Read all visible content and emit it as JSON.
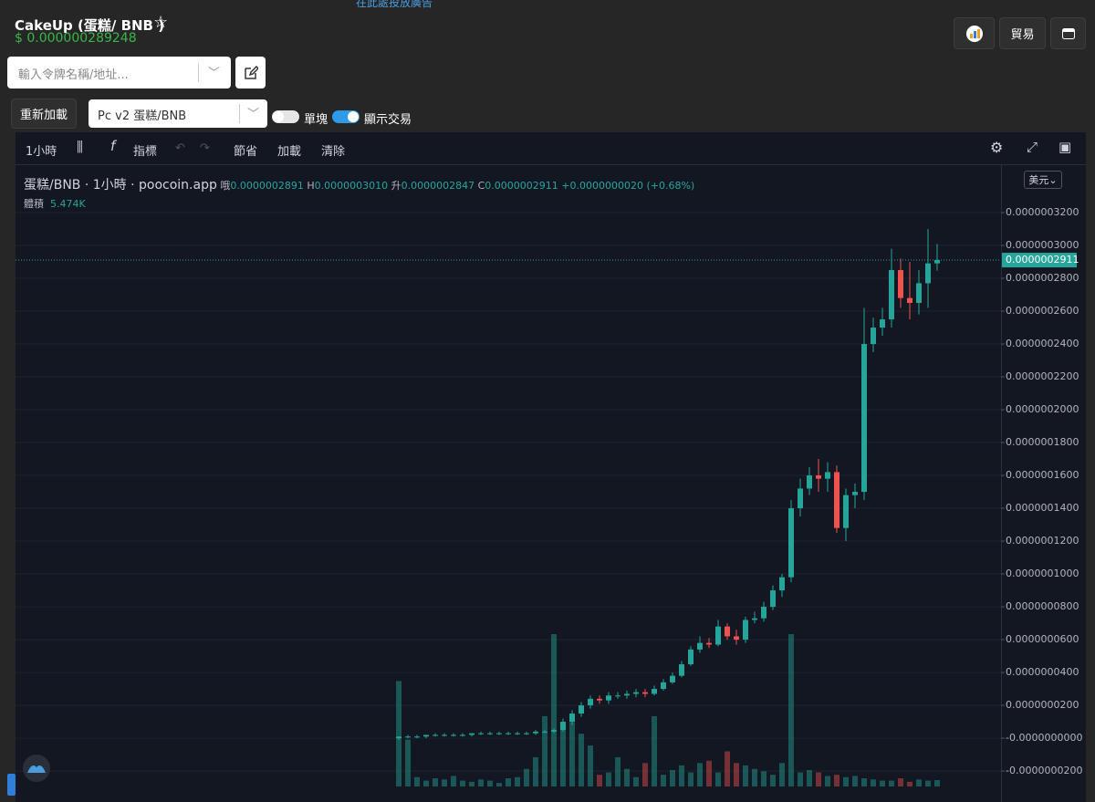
{
  "ad_link": "在此處投放廣告",
  "header": {
    "token": "CakeUp (蛋糕/ BNB )",
    "price": "$ 0.000000289248",
    "trade_button": "貿易"
  },
  "search": {
    "placeholder": "輸入令牌名稱/地址..."
  },
  "controls": {
    "reload": "重新加載",
    "pair_select": "Pc v2 蛋糕/BNB",
    "toggle_single": "單塊",
    "toggle_single_on": false,
    "toggle_trades": "顯示交易",
    "toggle_trades_on": true
  },
  "toolbar": {
    "interval": "1小時",
    "indicators": "指標",
    "save": "節省",
    "load": "加載",
    "clear": "清除"
  },
  "legend": {
    "title": "蛋糕/BNB · 1小時 · poocoin.app",
    "open_label": "哦",
    "open": "0.0000002891",
    "high_label": "H",
    "high": "0.0000003010",
    "low_label": "升",
    "low": "0.0000002847",
    "close_label": "C",
    "close": "0.0000002911",
    "change": "+0.0000000020 (+0.68%)",
    "volume_label": "體積",
    "volume": "5.474K"
  },
  "currency": "美元",
  "chart_data": {
    "type": "candlestick",
    "up_color": "#26a69a",
    "down_color": "#ef5350",
    "open": [
      0,
      1e-09,
      1e-09,
      1e-09,
      2e-09,
      2e-09,
      2e-09,
      2e-09,
      2e-09,
      3e-09,
      3e-09,
      3e-09,
      3e-09,
      3e-09,
      3e-09,
      3e-09,
      4e-09,
      4e-09,
      5e-09,
      1e-08,
      1.5e-08,
      2e-08,
      2.4e-08,
      2.3e-08,
      2.6e-08,
      2.6e-08,
      2.7e-08,
      2.8e-08,
      2.7e-08,
      3e-08,
      3.4e-08,
      3.8e-08,
      4.5e-08,
      5.4e-08,
      5.8e-08,
      5.7e-08,
      6.8e-08,
      6.2e-08,
      6e-08,
      7.2e-08,
      7.3e-08,
      8e-08,
      9e-08,
      9.8e-08,
      1.4e-07,
      1.52e-07,
      1.6e-07,
      1.58e-07,
      1.62e-07,
      1.28e-07,
      1.48e-07,
      1.5e-07,
      2.4e-07,
      2.5e-07,
      2.55e-07,
      2.85e-07,
      2.68e-07,
      2.65e-07,
      2.77e-07,
      2.891e-07
    ],
    "high": [
      1e-09,
      2e-09,
      2e-09,
      2e-09,
      3e-09,
      3e-09,
      3e-09,
      3e-09,
      3e-09,
      4e-09,
      4e-09,
      4e-09,
      4e-09,
      4e-09,
      4e-09,
      5e-09,
      5e-09,
      6e-09,
      1.2e-08,
      1.7e-08,
      2.2e-08,
      2.6e-08,
      2.6e-08,
      2.8e-08,
      2.8e-08,
      2.9e-08,
      3e-08,
      3e-08,
      3.2e-08,
      3.6e-08,
      4e-08,
      4.7e-08,
      5.6e-08,
      6.2e-08,
      6.1e-08,
      7.2e-08,
      7e-08,
      6.6e-08,
      7.4e-08,
      7.7e-08,
      8.3e-08,
      9.3e-08,
      1e-07,
      1.45e-07,
      1.58e-07,
      1.65e-07,
      1.7e-07,
      1.68e-07,
      1.66e-07,
      1.52e-07,
      1.55e-07,
      2.62e-07,
      2.56e-07,
      2.62e-07,
      2.98e-07,
      2.92e-07,
      2.9e-07,
      2.85e-07,
      3.1e-07,
      3.01e-07
    ],
    "low": [
      -1e-09,
      0,
      0,
      0,
      1e-09,
      1e-09,
      1e-09,
      1e-09,
      1e-09,
      2e-09,
      2e-09,
      2e-09,
      2e-09,
      2e-09,
      2e-09,
      2e-09,
      3e-09,
      3e-09,
      4e-09,
      8e-09,
      1.3e-08,
      1.8e-08,
      2.1e-08,
      2.1e-08,
      2.4e-08,
      2.4e-08,
      2.5e-08,
      2.5e-08,
      2.6e-08,
      2.9e-08,
      3.3e-08,
      3.7e-08,
      4.4e-08,
      5.2e-08,
      5.5e-08,
      5.6e-08,
      6e-08,
      5.7e-08,
      5.8e-08,
      7e-08,
      7.1e-08,
      7.8e-08,
      8.6e-08,
      9.5e-08,
      1.35e-07,
      1.48e-07,
      1.5e-07,
      1.5e-07,
      1.25e-07,
      1.2e-07,
      1.4e-07,
      1.45e-07,
      2.35e-07,
      2.45e-07,
      2.5e-07,
      2.62e-07,
      2.55e-07,
      2.58e-07,
      2.62e-07,
      2.847e-07
    ],
    "close": [
      1e-09,
      1e-09,
      1e-09,
      2e-09,
      2e-09,
      2e-09,
      2e-09,
      2e-09,
      3e-09,
      3e-09,
      3e-09,
      3e-09,
      3e-09,
      3e-09,
      3e-09,
      4e-09,
      4e-09,
      5e-09,
      1e-08,
      1.5e-08,
      2e-08,
      2.4e-08,
      2.3e-08,
      2.6e-08,
      2.6e-08,
      2.7e-08,
      2.8e-08,
      2.7e-08,
      3e-08,
      3.4e-08,
      3.8e-08,
      4.5e-08,
      5.4e-08,
      5.8e-08,
      5.7e-08,
      6.8e-08,
      6.2e-08,
      6e-08,
      7.2e-08,
      7.3e-08,
      8e-08,
      9e-08,
      9.8e-08,
      1.4e-07,
      1.52e-07,
      1.6e-07,
      1.58e-07,
      1.62e-07,
      1.28e-07,
      1.48e-07,
      1.5e-07,
      2.4e-07,
      2.5e-07,
      2.55e-07,
      2.85e-07,
      2.68e-07,
      2.65e-07,
      2.77e-07,
      2.891e-07,
      2.911e-07
    ],
    "volume": [
      90000,
      40000,
      8000,
      5000,
      7000,
      6000,
      9000,
      5000,
      4000,
      6000,
      5000,
      3000,
      7000,
      8000,
      15000,
      25000,
      60000,
      130000,
      50000,
      55000,
      45000,
      35000,
      10000,
      12000,
      25000,
      15000,
      8000,
      20000,
      60000,
      10000,
      14000,
      18000,
      12000,
      20000,
      22000,
      12000,
      30000,
      20000,
      18000,
      15000,
      13000,
      10000,
      20000,
      130000,
      12000,
      14000,
      12000,
      9000,
      10000,
      8000,
      9000,
      7000,
      6000,
      5000,
      5000,
      7000,
      4000,
      6000,
      5000,
      5474
    ],
    "last_label": "0.0000002911",
    "ylim": [
      -2.94e-08,
      3.489e-07
    ],
    "yticks": [
      {
        "value": -2e-08,
        "label": "-0.0000000200"
      },
      {
        "value": 0,
        "label": "-0.0000000000"
      },
      {
        "value": 2e-08,
        "label": "0.0000000200"
      },
      {
        "value": 4e-08,
        "label": "0.0000000400"
      },
      {
        "value": 6e-08,
        "label": "0.0000000600"
      },
      {
        "value": 8e-08,
        "label": "0.0000000800"
      },
      {
        "value": 1e-07,
        "label": "0.0000001000"
      },
      {
        "value": 1.2e-07,
        "label": "0.0000001200"
      },
      {
        "value": 1.4e-07,
        "label": "0.0000001400"
      },
      {
        "value": 1.6e-07,
        "label": "0.0000001600"
      },
      {
        "value": 1.8e-07,
        "label": "0.0000001800"
      },
      {
        "value": 2e-07,
        "label": "0.0000002000"
      },
      {
        "value": 2.2e-07,
        "label": "0.0000002200"
      },
      {
        "value": 2.4e-07,
        "label": "0.0000002400"
      },
      {
        "value": 2.6e-07,
        "label": "0.0000002600"
      },
      {
        "value": 2.8e-07,
        "label": "0.0000002800"
      },
      {
        "value": 3e-07,
        "label": "0.0000003000"
      },
      {
        "value": 3.2e-07,
        "label": "0.0000003200"
      }
    ],
    "grid": true
  }
}
